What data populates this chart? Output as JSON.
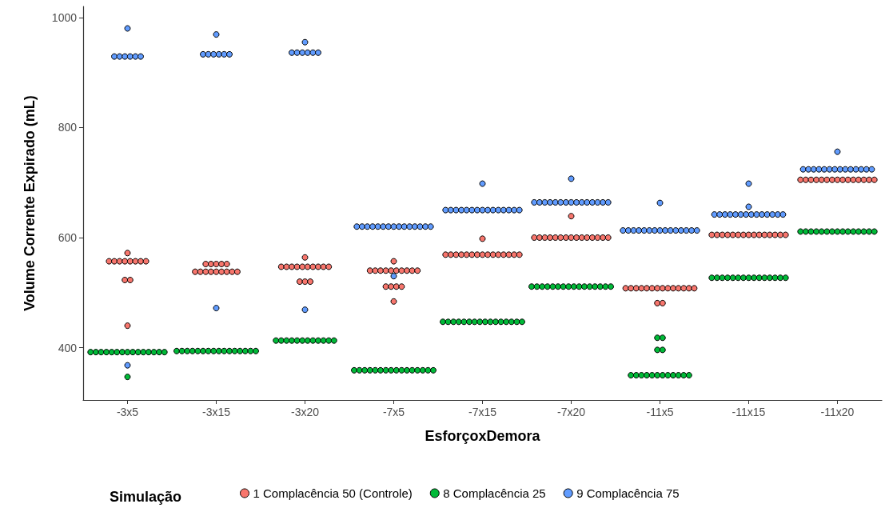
{
  "chart_data": {
    "type": "scatter",
    "xlabel": "EsforçoxDemora",
    "ylabel": "Volume Corrente Expirado (mL)",
    "legend_title": "Simulação",
    "categories": [
      "-3x5",
      "-3x15",
      "-3x20",
      "-7x5",
      "-7x15",
      "-7x20",
      "-11x5",
      "-11x15",
      "-11x20"
    ],
    "ylim": [
      305,
      1020
    ],
    "yticks": [
      400,
      600,
      800,
      1000
    ],
    "grid": false,
    "legend": "bottom",
    "marker": "circle",
    "series": [
      {
        "name": "1 Complacência 50 (Controle)",
        "color": "#f8766d",
        "x": [
          "-3x5",
          "-3x5",
          "-3x5",
          "-3x5",
          "-3x5",
          "-3x5",
          "-3x5",
          "-3x5",
          "-3x5",
          "-3x5",
          "-3x5",
          "-3x5",
          "-3x15",
          "-3x15",
          "-3x15",
          "-3x15",
          "-3x15",
          "-3x15",
          "-3x15",
          "-3x15",
          "-3x15",
          "-3x15",
          "-3x15",
          "-3x15",
          "-3x15",
          "-3x15",
          "-3x20",
          "-3x20",
          "-3x20",
          "-3x20",
          "-3x20",
          "-3x20",
          "-3x20",
          "-3x20",
          "-3x20",
          "-3x20",
          "-3x20",
          "-3x20",
          "-3x20",
          "-3x20",
          "-7x5",
          "-7x5",
          "-7x5",
          "-7x5",
          "-7x5",
          "-7x5",
          "-7x5",
          "-7x5",
          "-7x5",
          "-7x5",
          "-7x5",
          "-7x5",
          "-7x5",
          "-7x5",
          "-7x5",
          "-7x5",
          "-7x15",
          "-7x15",
          "-7x15",
          "-7x15",
          "-7x15",
          "-7x15",
          "-7x15",
          "-7x15",
          "-7x15",
          "-7x15",
          "-7x15",
          "-7x15",
          "-7x15",
          "-7x15",
          "-7x15",
          "-7x15",
          "-7x20",
          "-7x20",
          "-7x20",
          "-7x20",
          "-7x20",
          "-7x20",
          "-7x20",
          "-7x20",
          "-7x20",
          "-7x20",
          "-7x20",
          "-7x20",
          "-7x20",
          "-7x20",
          "-7x20",
          "-7x20",
          "-11x5",
          "-11x5",
          "-11x5",
          "-11x5",
          "-11x5",
          "-11x5",
          "-11x5",
          "-11x5",
          "-11x5",
          "-11x5",
          "-11x5",
          "-11x5",
          "-11x5",
          "-11x5",
          "-11x5",
          "-11x5",
          "-11x15",
          "-11x15",
          "-11x15",
          "-11x15",
          "-11x15",
          "-11x15",
          "-11x15",
          "-11x15",
          "-11x15",
          "-11x15",
          "-11x15",
          "-11x15",
          "-11x15",
          "-11x15",
          "-11x15",
          "-11x20",
          "-11x20",
          "-11x20",
          "-11x20",
          "-11x20",
          "-11x20",
          "-11x20",
          "-11x20",
          "-11x20",
          "-11x20",
          "-11x20",
          "-11x20",
          "-11x20",
          "-11x20",
          "-11x20"
        ],
        "values": [
          572,
          557,
          557,
          557,
          557,
          557,
          557,
          557,
          557,
          523,
          523,
          440,
          552,
          552,
          552,
          552,
          552,
          538,
          538,
          538,
          538,
          538,
          538,
          538,
          538,
          538,
          564,
          547,
          547,
          547,
          547,
          547,
          547,
          547,
          547,
          547,
          547,
          520,
          520,
          520,
          557,
          540,
          540,
          540,
          540,
          540,
          540,
          540,
          540,
          540,
          540,
          511,
          511,
          511,
          511,
          484,
          598,
          569,
          569,
          569,
          569,
          569,
          569,
          569,
          569,
          569,
          569,
          569,
          569,
          569,
          569,
          569,
          639,
          600,
          600,
          600,
          600,
          600,
          600,
          600,
          600,
          600,
          600,
          600,
          600,
          600,
          600,
          600,
          508,
          508,
          508,
          508,
          508,
          508,
          508,
          508,
          508,
          508,
          508,
          508,
          508,
          508,
          481,
          481,
          605,
          605,
          605,
          605,
          605,
          605,
          605,
          605,
          605,
          605,
          605,
          605,
          605,
          605,
          605,
          705,
          705,
          705,
          705,
          705,
          705,
          705,
          705,
          705,
          705,
          705,
          705,
          705,
          705,
          705
        ]
      },
      {
        "name": "8 Complacência 25",
        "color": "#00ba38",
        "x": [
          "-3x5",
          "-3x5",
          "-3x5",
          "-3x5",
          "-3x5",
          "-3x5",
          "-3x5",
          "-3x5",
          "-3x5",
          "-3x5",
          "-3x5",
          "-3x5",
          "-3x5",
          "-3x5",
          "-3x5",
          "-3x5",
          "-3x15",
          "-3x15",
          "-3x15",
          "-3x15",
          "-3x15",
          "-3x15",
          "-3x15",
          "-3x15",
          "-3x15",
          "-3x15",
          "-3x15",
          "-3x15",
          "-3x15",
          "-3x15",
          "-3x15",
          "-3x15",
          "-3x20",
          "-3x20",
          "-3x20",
          "-3x20",
          "-3x20",
          "-3x20",
          "-3x20",
          "-3x20",
          "-3x20",
          "-3x20",
          "-3x20",
          "-3x20",
          "-7x5",
          "-7x5",
          "-7x5",
          "-7x5",
          "-7x5",
          "-7x5",
          "-7x5",
          "-7x5",
          "-7x5",
          "-7x5",
          "-7x5",
          "-7x5",
          "-7x5",
          "-7x5",
          "-7x5",
          "-7x5",
          "-7x15",
          "-7x15",
          "-7x15",
          "-7x15",
          "-7x15",
          "-7x15",
          "-7x15",
          "-7x15",
          "-7x15",
          "-7x15",
          "-7x15",
          "-7x15",
          "-7x15",
          "-7x15",
          "-7x15",
          "-7x15",
          "-7x20",
          "-7x20",
          "-7x20",
          "-7x20",
          "-7x20",
          "-7x20",
          "-7x20",
          "-7x20",
          "-7x20",
          "-7x20",
          "-7x20",
          "-7x20",
          "-7x20",
          "-7x20",
          "-7x20",
          "-7x20",
          "-11x5",
          "-11x5",
          "-11x5",
          "-11x5",
          "-11x5",
          "-11x5",
          "-11x5",
          "-11x5",
          "-11x5",
          "-11x5",
          "-11x5",
          "-11x5",
          "-11x5",
          "-11x5",
          "-11x5",
          "-11x5",
          "-11x15",
          "-11x15",
          "-11x15",
          "-11x15",
          "-11x15",
          "-11x15",
          "-11x15",
          "-11x15",
          "-11x15",
          "-11x15",
          "-11x15",
          "-11x15",
          "-11x15",
          "-11x15",
          "-11x15",
          "-11x20",
          "-11x20",
          "-11x20",
          "-11x20",
          "-11x20",
          "-11x20",
          "-11x20",
          "-11x20",
          "-11x20",
          "-11x20",
          "-11x20",
          "-11x20",
          "-11x20",
          "-11x20",
          "-11x20"
        ],
        "values": [
          392,
          392,
          392,
          392,
          392,
          392,
          392,
          392,
          392,
          392,
          392,
          392,
          392,
          392,
          392,
          347,
          394,
          394,
          394,
          394,
          394,
          394,
          394,
          394,
          394,
          394,
          394,
          394,
          394,
          394,
          394,
          394,
          413,
          413,
          413,
          413,
          413,
          413,
          413,
          413,
          413,
          413,
          413,
          413,
          359,
          359,
          359,
          359,
          359,
          359,
          359,
          359,
          359,
          359,
          359,
          359,
          359,
          359,
          359,
          359,
          447,
          447,
          447,
          447,
          447,
          447,
          447,
          447,
          447,
          447,
          447,
          447,
          447,
          447,
          447,
          447,
          511,
          511,
          511,
          511,
          511,
          511,
          511,
          511,
          511,
          511,
          511,
          511,
          511,
          511,
          511,
          511,
          418,
          418,
          396,
          396,
          350,
          350,
          350,
          350,
          350,
          350,
          350,
          350,
          350,
          350,
          350,
          350,
          527,
          527,
          527,
          527,
          527,
          527,
          527,
          527,
          527,
          527,
          527,
          527,
          527,
          527,
          527,
          611,
          611,
          611,
          611,
          611,
          611,
          611,
          611,
          611,
          611,
          611,
          611,
          611,
          611,
          611
        ]
      },
      {
        "name": "9 Complacência 75",
        "color": "#619cff",
        "x": [
          "-3x5",
          "-3x5",
          "-3x5",
          "-3x5",
          "-3x5",
          "-3x5",
          "-3x5",
          "-3x5",
          "-3x15",
          "-3x15",
          "-3x15",
          "-3x15",
          "-3x15",
          "-3x15",
          "-3x15",
          "-3x15",
          "-3x20",
          "-3x20",
          "-3x20",
          "-3x20",
          "-3x20",
          "-3x20",
          "-3x20",
          "-3x20",
          "-7x5",
          "-7x5",
          "-7x5",
          "-7x5",
          "-7x5",
          "-7x5",
          "-7x5",
          "-7x5",
          "-7x5",
          "-7x5",
          "-7x5",
          "-7x5",
          "-7x5",
          "-7x5",
          "-7x5",
          "-7x5",
          "-7x15",
          "-7x15",
          "-7x15",
          "-7x15",
          "-7x15",
          "-7x15",
          "-7x15",
          "-7x15",
          "-7x15",
          "-7x15",
          "-7x15",
          "-7x15",
          "-7x15",
          "-7x15",
          "-7x15",
          "-7x15",
          "-7x20",
          "-7x20",
          "-7x20",
          "-7x20",
          "-7x20",
          "-7x20",
          "-7x20",
          "-7x20",
          "-7x20",
          "-7x20",
          "-7x20",
          "-7x20",
          "-7x20",
          "-7x20",
          "-7x20",
          "-7x20",
          "-11x5",
          "-11x5",
          "-11x5",
          "-11x5",
          "-11x5",
          "-11x5",
          "-11x5",
          "-11x5",
          "-11x5",
          "-11x5",
          "-11x5",
          "-11x5",
          "-11x5",
          "-11x5",
          "-11x5",
          "-11x5",
          "-11x15",
          "-11x15",
          "-11x15",
          "-11x15",
          "-11x15",
          "-11x15",
          "-11x15",
          "-11x15",
          "-11x15",
          "-11x15",
          "-11x15",
          "-11x15",
          "-11x15",
          "-11x15",
          "-11x15",
          "-11x15",
          "-11x20",
          "-11x20",
          "-11x20",
          "-11x20",
          "-11x20",
          "-11x20",
          "-11x20",
          "-11x20",
          "-11x20",
          "-11x20",
          "-11x20",
          "-11x20",
          "-11x20",
          "-11x20",
          "-11x20"
        ],
        "values": [
          980,
          929,
          929,
          929,
          929,
          929,
          929,
          368,
          969,
          933,
          933,
          933,
          933,
          933,
          933,
          472,
          955,
          936,
          936,
          936,
          936,
          936,
          936,
          469,
          620,
          620,
          620,
          620,
          620,
          620,
          620,
          620,
          620,
          620,
          620,
          620,
          620,
          620,
          620,
          530,
          698,
          650,
          650,
          650,
          650,
          650,
          650,
          650,
          650,
          650,
          650,
          650,
          650,
          650,
          650,
          650,
          707,
          664,
          664,
          664,
          664,
          664,
          664,
          664,
          664,
          664,
          664,
          664,
          664,
          664,
          664,
          664,
          663,
          613,
          613,
          613,
          613,
          613,
          613,
          613,
          613,
          613,
          613,
          613,
          613,
          613,
          613,
          613,
          698,
          656,
          642,
          642,
          642,
          642,
          642,
          642,
          642,
          642,
          642,
          642,
          642,
          642,
          642,
          642,
          756,
          724,
          724,
          724,
          724,
          724,
          724,
          724,
          724,
          724,
          724,
          724,
          724,
          724,
          724
        ]
      }
    ]
  }
}
